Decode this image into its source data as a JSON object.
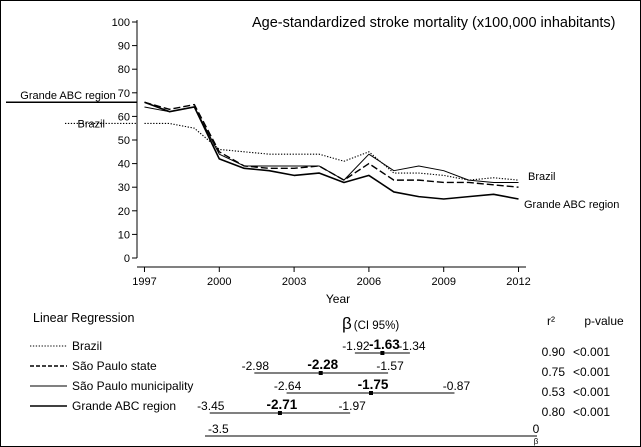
{
  "chart_data": [
    {
      "type": "line",
      "title": "Age-standardized stroke mortality (x100,000 inhabitants)",
      "xlabel": "Year",
      "ylabel": "",
      "xlim": [
        1996.7,
        2012.3
      ],
      "ylim": [
        0,
        100
      ],
      "xticks": [
        1997,
        2000,
        2003,
        2006,
        2009,
        2012
      ],
      "yticks": [
        0,
        10,
        20,
        30,
        40,
        50,
        60,
        70,
        80,
        90,
        100
      ],
      "left_labels": [
        {
          "text": "Grande ABC region",
          "series": "Grande ABC region"
        },
        {
          "text": "Brazil",
          "series": "Brazil"
        }
      ],
      "right_labels": [
        {
          "text": "Brazil",
          "series": "Brazil"
        },
        {
          "text": "Grande ABC region",
          "series": "Grande ABC region"
        }
      ],
      "x": [
        1997,
        1998,
        1999,
        2000,
        2001,
        2002,
        2003,
        2004,
        2005,
        2006,
        2007,
        2008,
        2009,
        2010,
        2011,
        2012
      ],
      "series": [
        {
          "name": "Brazil",
          "style": "dotted",
          "values": [
            57,
            57,
            55,
            46,
            45,
            44,
            44,
            44,
            41,
            45,
            36,
            36,
            35,
            33,
            34,
            33
          ]
        },
        {
          "name": "São Paulo state",
          "style": "dashed",
          "values": [
            66,
            63,
            65,
            45,
            39,
            38,
            38,
            39,
            33,
            40,
            33,
            33,
            32,
            32,
            31,
            30
          ]
        },
        {
          "name": "São Paulo municipality",
          "style": "solid-thin",
          "values": [
            64,
            62,
            64,
            44,
            39,
            39,
            39,
            39,
            33,
            44,
            37,
            39,
            37,
            33,
            32,
            32
          ]
        },
        {
          "name": "Grande ABC region",
          "style": "solid-thick",
          "values": [
            66,
            62,
            64,
            42,
            38,
            37,
            35,
            36,
            32,
            35,
            28,
            26,
            25,
            26,
            27,
            25
          ]
        }
      ]
    },
    {
      "type": "forest",
      "section_title": "Linear Regression",
      "beta_symbol": "β",
      "beta_suffix": "(CI 95%)",
      "r2_header": "r²",
      "p_header": "p-value",
      "axis_min_label": "-3.5",
      "axis_max_label": "0",
      "axis_symbol": "β",
      "axis_range": [
        -3.5,
        0
      ],
      "rows": [
        {
          "label": "Brazil",
          "style": "dotted",
          "beta": -1.63,
          "lower": -1.92,
          "upper": -1.34,
          "beta_label": "-1.63",
          "lower_label": "-1.92",
          "upper_label": "-1.34",
          "r2": "0.90",
          "p": "<0.001"
        },
        {
          "label": "São Paulo state",
          "style": "dashed",
          "beta": -2.28,
          "lower": -2.98,
          "upper": -1.57,
          "beta_label": "-2.28",
          "lower_label": "-2.98",
          "upper_label": "-1.57",
          "r2": "0.75",
          "p": "<0.001"
        },
        {
          "label": "São Paulo municipality",
          "style": "solid-thin",
          "beta": -1.75,
          "lower": -2.64,
          "upper": -0.87,
          "beta_label": "-1.75",
          "lower_label": "-2.64",
          "upper_label": "-0.87",
          "r2": "0.53",
          "p": "<0.001"
        },
        {
          "label": "Grande ABC region",
          "style": "solid-thick",
          "beta": -2.71,
          "lower": -3.45,
          "upper": -1.97,
          "beta_label": "-2.71",
          "lower_label": "-3.45",
          "upper_label": "-1.97",
          "r2": "0.80",
          "p": "<0.001"
        }
      ]
    }
  ]
}
